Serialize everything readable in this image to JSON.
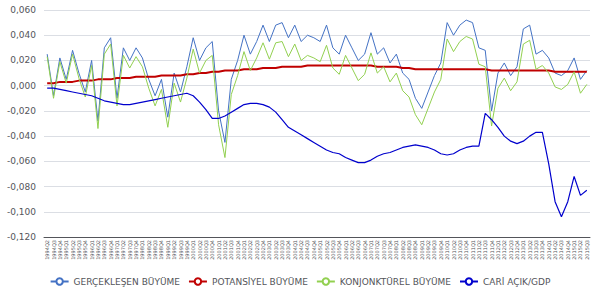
{
  "chart_data": {
    "type": "line",
    "categories": [
      "1994Q2",
      "1994Q3",
      "1994Q4",
      "1995Q1",
      "1995Q2",
      "1995Q3",
      "1995Q4",
      "1996Q1",
      "1996Q2",
      "1996Q3",
      "1996Q4",
      "1997Q1",
      "1997Q2",
      "1997Q3",
      "1997Q4",
      "1998Q1",
      "1998Q2",
      "1998Q3",
      "1998Q4",
      "1999Q1",
      "1999Q2",
      "1999Q3",
      "1999Q4",
      "2000Q1",
      "2000Q2",
      "2000Q3",
      "2000Q4",
      "2001Q1",
      "2001Q2",
      "2001Q3",
      "2001Q4",
      "2002Q1",
      "2002Q2",
      "2002Q3",
      "2002Q4",
      "2003Q1",
      "2003Q2",
      "2003Q3",
      "2003Q4",
      "2004Q1",
      "2004Q2",
      "2004Q3",
      "2004Q4",
      "2005Q1",
      "2005Q2",
      "2005Q3",
      "2005Q4",
      "2006Q1",
      "2006Q2",
      "2006Q3",
      "2006Q4",
      "2007Q1",
      "2007Q2",
      "2007Q3",
      "2007Q4",
      "2008Q1",
      "2008Q2",
      "2008Q3",
      "2008Q4",
      "2009Q1",
      "2009Q2",
      "2009Q3",
      "2009Q4",
      "2010Q1",
      "2010Q2",
      "2010Q3",
      "2010Q4",
      "2011Q1",
      "2011Q2",
      "2011Q3",
      "2011Q4",
      "2012Q1",
      "2012Q2",
      "2012Q3",
      "2012Q4",
      "2013Q1",
      "2013Q2",
      "2013Q3",
      "2013Q4",
      "2014Q1",
      "2014Q2",
      "2014Q3",
      "2014Q4",
      "2015Q1",
      "2015Q2",
      "2015Q3"
    ],
    "series": [
      {
        "name": "GERÇEKLEŞEN BÜYÜME",
        "color": "#4472c4",
        "values": [
          0.025,
          -0.008,
          0.022,
          0.005,
          0.028,
          0.01,
          -0.005,
          0.02,
          -0.028,
          0.03,
          0.038,
          -0.01,
          0.03,
          0.02,
          0.03,
          0.022,
          0.005,
          -0.008,
          0.005,
          -0.025,
          0.01,
          -0.005,
          0.015,
          0.038,
          0.02,
          0.03,
          0.035,
          -0.02,
          -0.045,
          0.005,
          0.02,
          0.04,
          0.025,
          0.035,
          0.048,
          0.035,
          0.048,
          0.05,
          0.038,
          0.048,
          0.035,
          0.04,
          0.038,
          0.035,
          0.048,
          0.03,
          0.025,
          0.04,
          0.03,
          0.02,
          0.025,
          0.042,
          0.025,
          0.03,
          0.018,
          0.025,
          0.01,
          0.005,
          -0.01,
          -0.018,
          -0.005,
          0.008,
          0.018,
          0.05,
          0.04,
          0.048,
          0.052,
          0.05,
          0.03,
          0.028,
          -0.02,
          0.01,
          0.018,
          0.008,
          0.015,
          0.045,
          0.048,
          0.025,
          0.028,
          0.022,
          0.01,
          0.008,
          0.012,
          0.022,
          0.005,
          0.012
        ]
      },
      {
        "name": "POTANSİYEL BÜYÜME",
        "color": "#c00000",
        "values": [
          0.002,
          0.002,
          0.003,
          0.003,
          0.003,
          0.004,
          0.004,
          0.004,
          0.005,
          0.005,
          0.005,
          0.006,
          0.006,
          0.006,
          0.007,
          0.007,
          0.007,
          0.007,
          0.008,
          0.008,
          0.008,
          0.008,
          0.009,
          0.009,
          0.01,
          0.01,
          0.011,
          0.011,
          0.012,
          0.012,
          0.012,
          0.013,
          0.013,
          0.013,
          0.014,
          0.014,
          0.014,
          0.015,
          0.015,
          0.015,
          0.015,
          0.016,
          0.016,
          0.016,
          0.016,
          0.016,
          0.016,
          0.016,
          0.016,
          0.016,
          0.016,
          0.016,
          0.015,
          0.015,
          0.015,
          0.015,
          0.014,
          0.014,
          0.013,
          0.013,
          0.013,
          0.013,
          0.013,
          0.013,
          0.013,
          0.013,
          0.013,
          0.013,
          0.013,
          0.013,
          0.012,
          0.012,
          0.012,
          0.012,
          0.012,
          0.012,
          0.012,
          0.012,
          0.012,
          0.012,
          0.011,
          0.011,
          0.011,
          0.011,
          0.011,
          0.011
        ]
      },
      {
        "name": "KONJONKTÜREL BÜYÜME",
        "color": "#92d050",
        "values": [
          0.023,
          -0.01,
          0.019,
          0.002,
          0.025,
          0.006,
          -0.009,
          0.016,
          -0.034,
          0.025,
          0.033,
          -0.016,
          0.024,
          0.014,
          0.023,
          0.015,
          -0.002,
          -0.016,
          -0.003,
          -0.033,
          0.002,
          -0.013,
          0.006,
          0.029,
          0.01,
          0.02,
          0.024,
          -0.031,
          -0.057,
          -0.007,
          0.008,
          0.027,
          0.012,
          0.022,
          0.034,
          0.021,
          0.034,
          0.035,
          0.023,
          0.033,
          0.02,
          0.024,
          0.022,
          0.019,
          0.032,
          0.014,
          0.009,
          0.024,
          0.014,
          0.004,
          0.009,
          0.026,
          0.01,
          0.015,
          0.003,
          0.01,
          -0.004,
          -0.009,
          -0.023,
          -0.031,
          -0.018,
          -0.005,
          0.005,
          0.037,
          0.027,
          0.035,
          0.039,
          0.037,
          0.017,
          0.015,
          -0.032,
          -0.002,
          0.006,
          -0.004,
          0.003,
          0.033,
          0.036,
          0.013,
          0.016,
          0.01,
          -0.001,
          -0.003,
          0.001,
          0.011,
          -0.006,
          0.001
        ]
      },
      {
        "name": "CARİ AÇIK/GDP",
        "color": "#0000cd",
        "values": [
          -0.002,
          -0.002,
          -0.003,
          -0.004,
          -0.005,
          -0.006,
          -0.007,
          -0.008,
          -0.01,
          -0.012,
          -0.013,
          -0.014,
          -0.015,
          -0.015,
          -0.014,
          -0.013,
          -0.012,
          -0.011,
          -0.01,
          -0.009,
          -0.008,
          -0.007,
          -0.006,
          -0.008,
          -0.013,
          -0.019,
          -0.026,
          -0.026,
          -0.024,
          -0.021,
          -0.018,
          -0.015,
          -0.014,
          -0.014,
          -0.015,
          -0.017,
          -0.021,
          -0.027,
          -0.033,
          -0.036,
          -0.039,
          -0.042,
          -0.045,
          -0.048,
          -0.051,
          -0.053,
          -0.054,
          -0.057,
          -0.059,
          -0.061,
          -0.061,
          -0.059,
          -0.056,
          -0.054,
          -0.053,
          -0.051,
          -0.049,
          -0.048,
          -0.047,
          -0.048,
          -0.049,
          -0.051,
          -0.054,
          -0.055,
          -0.054,
          -0.051,
          -0.049,
          -0.048,
          -0.048,
          -0.022,
          -0.027,
          -0.033,
          -0.04,
          -0.044,
          -0.046,
          -0.044,
          -0.04,
          -0.037,
          -0.037,
          -0.062,
          -0.092,
          -0.104,
          -0.092,
          -0.072,
          -0.087,
          -0.083
        ]
      }
    ],
    "ylim": [
      -0.12,
      0.06
    ],
    "yticks": [
      {
        "value": -0.12,
        "label": "-0,120"
      },
      {
        "value": -0.1,
        "label": "-0,100"
      },
      {
        "value": -0.08,
        "label": "-0,080"
      },
      {
        "value": -0.06,
        "label": "-0,060"
      },
      {
        "value": -0.04,
        "label": "-0,040"
      },
      {
        "value": -0.02,
        "label": "-0,020"
      },
      {
        "value": 0.0,
        "label": "0,000"
      },
      {
        "value": 0.02,
        "label": "0,020"
      },
      {
        "value": 0.04,
        "label": "0,040"
      },
      {
        "value": 0.06,
        "label": "0,060"
      }
    ],
    "grid": true,
    "legend": "bottom"
  }
}
